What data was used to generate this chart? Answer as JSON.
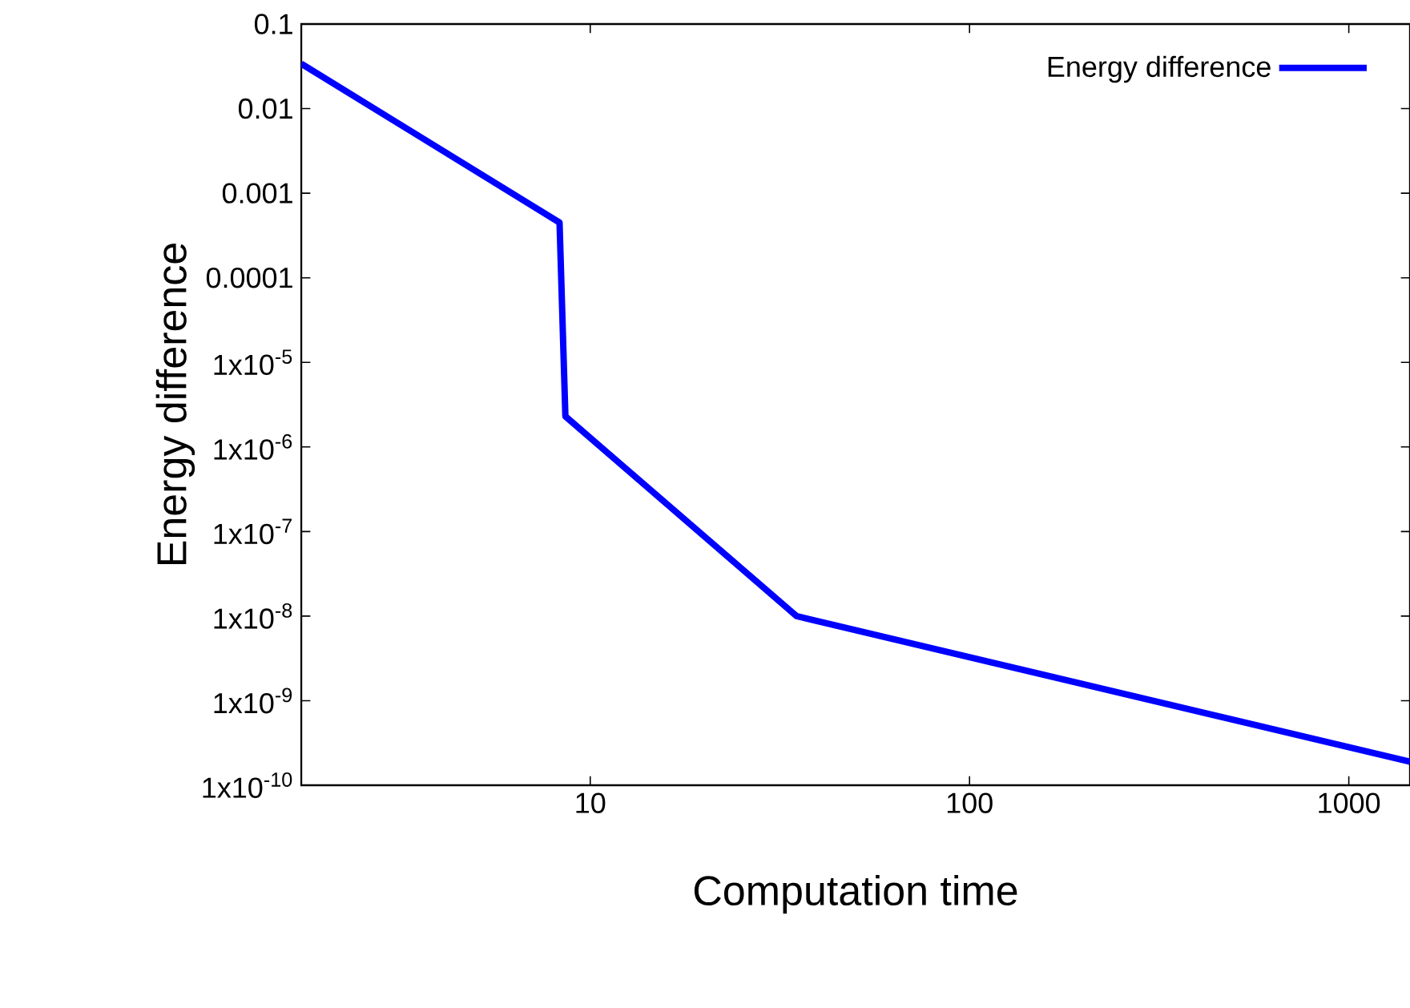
{
  "chart_data": {
    "type": "line",
    "xlabel": "Computation time",
    "ylabel": "Energy difference",
    "log": "xy",
    "legend": "top right",
    "xlim": [
      1.73,
      1450
    ],
    "xticks": [
      10,
      100,
      1000
    ],
    "ylim": [
      1e-10,
      0.1
    ],
    "yticks": [
      0.1,
      0.01,
      0.001,
      0.0001,
      {
        "value": 1e-05,
        "label": "1x10$^{-5}$"
      },
      {
        "value": 1e-06,
        "label": "1x10$^{-6}$"
      },
      {
        "value": 1e-07,
        "label": "1x10$^{-7}$"
      },
      {
        "value": 1e-08,
        "label": "1x10$^{-8}$"
      },
      {
        "value": 1e-09,
        "label": "1x10$^{-9}$"
      },
      {
        "value": 1e-10,
        "label": "1x10$^{-10}$"
      }
    ],
    "series": [
      {
        "name": "Energy difference",
        "color": "#0000ff",
        "x": [
          1.73,
          8.3,
          8.6,
          35,
          1450
        ],
        "values": [
          0.034,
          0.00045,
          2.3e-06,
          1e-08,
          1.9e-10
        ]
      }
    ]
  }
}
